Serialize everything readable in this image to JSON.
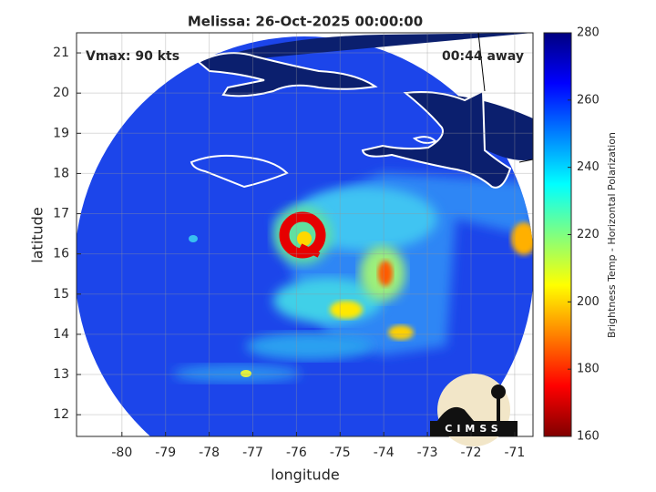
{
  "chart_data": {
    "type": "map",
    "title": "Melissa: 26-Oct-2025 00:00:00",
    "annotations": [
      "Vmax: 90 kts",
      "00:44 away"
    ],
    "xlabel": "longitude",
    "ylabel": "latitude",
    "xlim": [
      -81.04,
      -70.58
    ],
    "ylim": [
      11.46,
      21.5
    ],
    "xticks": [
      -80,
      -79,
      -78,
      -77,
      -76,
      -75,
      -74,
      -73,
      -72,
      -71
    ],
    "yticks": [
      12,
      13,
      14,
      15,
      16,
      17,
      18,
      19,
      20,
      21
    ],
    "grid": true,
    "colorbar": {
      "label": "Brightness Temp - Horizontal Polarization",
      "clim": [
        160,
        280
      ],
      "ticks": [
        160,
        180,
        200,
        220,
        240,
        260,
        280
      ],
      "colormap": [
        "#800000",
        "#ff0000",
        "#ff8000",
        "#ffff00",
        "#80ff80",
        "#00ffff",
        "#0080ff",
        "#0000ff",
        "#000080"
      ]
    }
  },
  "logo_text": "CIMSS"
}
